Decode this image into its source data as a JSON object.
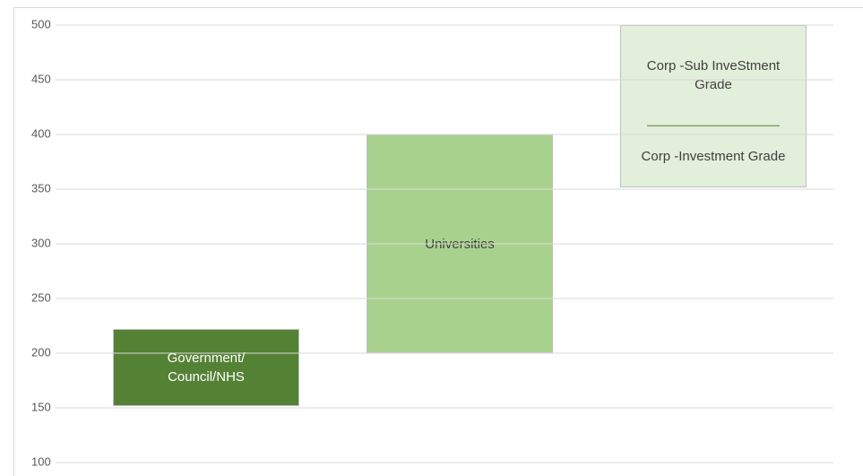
{
  "chart_data": {
    "type": "floating_bar",
    "ylim": [
      100,
      500
    ],
    "yticks": [
      100,
      150,
      200,
      250,
      300,
      350,
      400,
      450,
      500
    ],
    "grid": true,
    "bars": [
      {
        "label": "Government/ Council/NHS",
        "low": 152,
        "high": 222,
        "color": "#548235"
      },
      {
        "label": "Universities",
        "low": 200,
        "high": 400,
        "color": "#a9d18e"
      },
      {
        "color": "#e2efda",
        "segments": [
          {
            "label": "Corp -Investment Grade",
            "low": 352,
            "high": 408
          },
          {
            "label": "Corp -Sub InveStment Grade",
            "low": 408,
            "high": 500
          }
        ]
      }
    ]
  }
}
